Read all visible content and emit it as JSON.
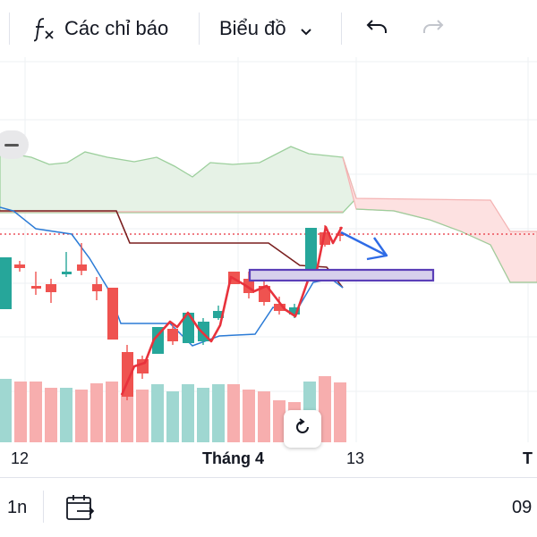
{
  "toolbar": {
    "indicators_label": "Các chỉ báo",
    "chart_type_label": "Biểu đồ",
    "icons": [
      "function-icon",
      "chevron-down-icon",
      "undo-icon",
      "redo-icon"
    ]
  },
  "x_axis": {
    "labels": [
      "12",
      "Tháng 4",
      "13",
      "T"
    ]
  },
  "bottom": {
    "range_label": "1n",
    "time_label": "09",
    "icons": [
      "calendar-range-icon"
    ]
  },
  "colors": {
    "up": "#26a69a",
    "down": "#ef5350",
    "kumo_up": "#e6f2e6",
    "kumo_down": "#fde1e1",
    "tenkan": "#2b7bd6",
    "kijun": "#7a1f1f",
    "accent_line": "#e8323c"
  },
  "buttons": [
    "reset-view-icon",
    "zoom-out-icon"
  ]
}
